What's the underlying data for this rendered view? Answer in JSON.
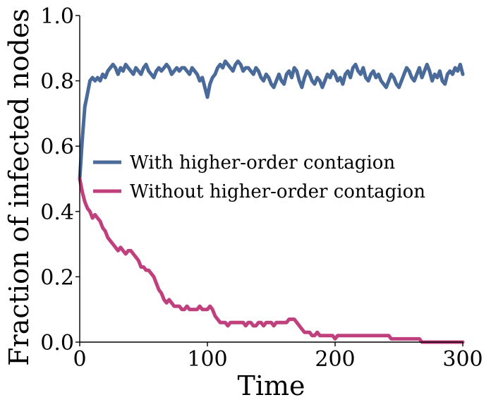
{
  "chart_data": {
    "type": "line",
    "title": "",
    "xlabel": "Time",
    "ylabel": "Fraction of infected nodes",
    "xlim": [
      0,
      300
    ],
    "ylim": [
      0,
      1
    ],
    "xticks": [
      0,
      100,
      200,
      300
    ],
    "xtick_labels": [
      "0",
      "100",
      "200",
      "300"
    ],
    "yticks": [
      0,
      0.2,
      0.4,
      0.6,
      0.8,
      1
    ],
    "ytick_labels": [
      "0.0",
      "0.2",
      "0.4",
      "0.6",
      "0.8",
      "1.0"
    ],
    "grid": false,
    "legend_position": "center-right",
    "series": [
      {
        "name": "With higher-order contagion",
        "color": "#4a6a9a",
        "x": [
          0,
          2,
          4,
          6,
          8,
          10,
          12,
          14,
          16,
          18,
          20,
          22,
          24,
          26,
          28,
          30,
          32,
          34,
          36,
          38,
          40,
          42,
          44,
          46,
          48,
          50,
          52,
          54,
          56,
          58,
          60,
          62,
          64,
          66,
          68,
          70,
          72,
          74,
          76,
          78,
          80,
          82,
          84,
          86,
          88,
          90,
          92,
          94,
          96,
          98,
          100,
          102,
          104,
          106,
          108,
          110,
          112,
          114,
          116,
          118,
          120,
          122,
          124,
          126,
          128,
          130,
          132,
          134,
          136,
          138,
          140,
          142,
          144,
          146,
          148,
          150,
          152,
          154,
          156,
          158,
          160,
          162,
          164,
          166,
          168,
          170,
          172,
          174,
          176,
          178,
          180,
          182,
          184,
          186,
          188,
          190,
          192,
          194,
          196,
          198,
          200,
          202,
          204,
          206,
          208,
          210,
          212,
          214,
          216,
          218,
          220,
          222,
          224,
          226,
          228,
          230,
          232,
          234,
          236,
          238,
          240,
          242,
          244,
          246,
          248,
          250,
          252,
          254,
          256,
          258,
          260,
          262,
          264,
          266,
          268,
          270,
          272,
          274,
          276,
          278,
          280,
          282,
          284,
          286,
          288,
          290,
          292,
          294,
          296,
          298,
          300
        ],
        "y": [
          0.5,
          0.62,
          0.72,
          0.76,
          0.8,
          0.81,
          0.8,
          0.81,
          0.8,
          0.82,
          0.81,
          0.83,
          0.84,
          0.85,
          0.84,
          0.82,
          0.84,
          0.83,
          0.85,
          0.84,
          0.83,
          0.82,
          0.84,
          0.83,
          0.82,
          0.84,
          0.85,
          0.83,
          0.82,
          0.81,
          0.83,
          0.84,
          0.83,
          0.84,
          0.85,
          0.84,
          0.82,
          0.83,
          0.84,
          0.83,
          0.84,
          0.84,
          0.83,
          0.82,
          0.84,
          0.83,
          0.82,
          0.8,
          0.81,
          0.78,
          0.75,
          0.79,
          0.81,
          0.82,
          0.84,
          0.85,
          0.84,
          0.86,
          0.85,
          0.84,
          0.83,
          0.85,
          0.86,
          0.85,
          0.83,
          0.84,
          0.84,
          0.83,
          0.82,
          0.84,
          0.83,
          0.81,
          0.8,
          0.82,
          0.81,
          0.79,
          0.78,
          0.8,
          0.82,
          0.8,
          0.79,
          0.82,
          0.83,
          0.81,
          0.84,
          0.83,
          0.8,
          0.78,
          0.81,
          0.83,
          0.82,
          0.8,
          0.79,
          0.81,
          0.8,
          0.78,
          0.8,
          0.82,
          0.81,
          0.83,
          0.82,
          0.8,
          0.81,
          0.79,
          0.82,
          0.83,
          0.81,
          0.84,
          0.85,
          0.83,
          0.82,
          0.84,
          0.81,
          0.8,
          0.82,
          0.83,
          0.81,
          0.82,
          0.8,
          0.79,
          0.78,
          0.8,
          0.82,
          0.81,
          0.79,
          0.78,
          0.8,
          0.82,
          0.84,
          0.83,
          0.81,
          0.8,
          0.82,
          0.84,
          0.81,
          0.83,
          0.85,
          0.83,
          0.8,
          0.82,
          0.81,
          0.83,
          0.8,
          0.79,
          0.82,
          0.83,
          0.82,
          0.84,
          0.83,
          0.85,
          0.82
        ]
      },
      {
        "name": "Without higher-order contagion",
        "color": "#c0407e",
        "x": [
          0,
          2,
          4,
          6,
          8,
          10,
          12,
          14,
          16,
          18,
          20,
          22,
          24,
          26,
          28,
          30,
          32,
          34,
          36,
          38,
          40,
          42,
          44,
          46,
          48,
          50,
          52,
          54,
          56,
          58,
          60,
          62,
          64,
          66,
          68,
          70,
          72,
          74,
          76,
          78,
          80,
          82,
          84,
          86,
          88,
          90,
          92,
          94,
          96,
          98,
          100,
          102,
          104,
          106,
          108,
          110,
          112,
          114,
          116,
          118,
          120,
          122,
          124,
          126,
          128,
          130,
          132,
          134,
          136,
          138,
          140,
          142,
          144,
          146,
          148,
          150,
          152,
          154,
          156,
          158,
          160,
          162,
          164,
          166,
          168,
          170,
          172,
          174,
          176,
          178,
          180,
          182,
          184,
          186,
          188,
          190,
          192,
          194,
          196,
          198,
          200,
          202,
          204,
          206,
          208,
          210,
          212,
          214,
          216,
          218,
          220,
          222,
          224,
          226,
          228,
          230,
          232,
          234,
          236,
          238,
          240,
          242,
          244,
          246,
          248,
          250,
          252,
          254,
          256,
          258,
          260,
          262,
          264,
          266,
          268,
          270,
          272,
          274,
          276,
          278,
          280,
          282,
          284,
          286,
          288,
          290,
          292,
          294,
          296,
          298,
          300
        ],
        "y": [
          0.5,
          0.46,
          0.43,
          0.41,
          0.4,
          0.38,
          0.39,
          0.38,
          0.37,
          0.35,
          0.34,
          0.32,
          0.31,
          0.3,
          0.29,
          0.28,
          0.29,
          0.28,
          0.27,
          0.28,
          0.28,
          0.27,
          0.26,
          0.25,
          0.23,
          0.23,
          0.22,
          0.22,
          0.21,
          0.2,
          0.18,
          0.16,
          0.15,
          0.13,
          0.12,
          0.13,
          0.12,
          0.11,
          0.11,
          0.11,
          0.1,
          0.1,
          0.11,
          0.1,
          0.1,
          0.1,
          0.1,
          0.11,
          0.1,
          0.1,
          0.1,
          0.11,
          0.1,
          0.08,
          0.07,
          0.06,
          0.06,
          0.06,
          0.05,
          0.06,
          0.06,
          0.06,
          0.06,
          0.06,
          0.06,
          0.05,
          0.06,
          0.06,
          0.05,
          0.05,
          0.06,
          0.06,
          0.05,
          0.06,
          0.06,
          0.06,
          0.05,
          0.06,
          0.06,
          0.06,
          0.06,
          0.06,
          0.07,
          0.07,
          0.07,
          0.06,
          0.05,
          0.04,
          0.03,
          0.03,
          0.03,
          0.02,
          0.02,
          0.03,
          0.02,
          0.02,
          0.02,
          0.02,
          0.02,
          0.02,
          0.01,
          0.02,
          0.02,
          0.02,
          0.02,
          0.02,
          0.02,
          0.02,
          0.02,
          0.02,
          0.02,
          0.02,
          0.02,
          0.02,
          0.02,
          0.02,
          0.02,
          0.02,
          0.02,
          0.02,
          0.02,
          0.02,
          0.01,
          0.01,
          0.01,
          0.01,
          0.01,
          0.01,
          0.01,
          0.01,
          0.01,
          0.01,
          0.01,
          0.01,
          0.0,
          0.0,
          0.0,
          0.0,
          0.0,
          0.0,
          0.0,
          0.0,
          0.0,
          0.0,
          0.0,
          0.0,
          0.0,
          0.0,
          0.0,
          0.0,
          0.0
        ]
      }
    ]
  }
}
